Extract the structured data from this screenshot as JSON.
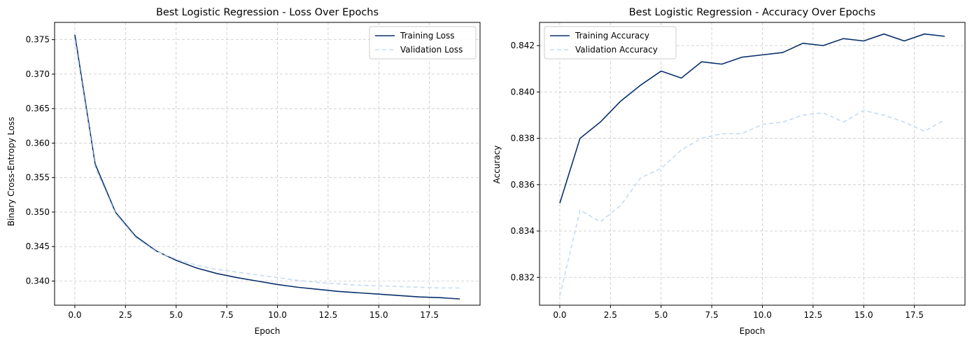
{
  "chart_data": [
    {
      "type": "line",
      "title": "Best Logistic Regression - Loss Over Epochs",
      "xlabel": "Epoch",
      "ylabel": "Binary Cross-Entropy Loss",
      "xlim": [
        -1.0,
        20.0
      ],
      "ylim": [
        0.3365,
        0.3775
      ],
      "xticks": [
        0,
        2.5,
        5,
        7.5,
        10,
        12.5,
        15,
        17.5
      ],
      "xtick_labels": [
        "0.0",
        "2.5",
        "5.0",
        "7.5",
        "10.0",
        "12.5",
        "15.0",
        "17.5"
      ],
      "yticks": [
        0.34,
        0.345,
        0.35,
        0.355,
        0.36,
        0.365,
        0.37,
        0.375
      ],
      "ytick_labels": [
        "0.340",
        "0.345",
        "0.350",
        "0.355",
        "0.360",
        "0.365",
        "0.370",
        "0.375"
      ],
      "grid": true,
      "legend_position": "top-right",
      "x": [
        0,
        1,
        2,
        3,
        4,
        5,
        6,
        7,
        8,
        9,
        10,
        11,
        12,
        13,
        14,
        15,
        16,
        17,
        18,
        19
      ],
      "series": [
        {
          "name": "Training Loss",
          "color": "#08306b",
          "dashed": false,
          "values": [
            0.3757,
            0.357,
            0.35,
            0.3465,
            0.3444,
            0.343,
            0.3419,
            0.3411,
            0.3405,
            0.34,
            0.3395,
            0.3391,
            0.3388,
            0.3385,
            0.3383,
            0.3381,
            0.3379,
            0.3377,
            0.3376,
            0.3374
          ]
        },
        {
          "name": "Validation Loss",
          "color": "#c6dbef",
          "dashed": true,
          "values": [
            0.375,
            0.3565,
            0.3498,
            0.3463,
            0.3443,
            0.3432,
            0.3423,
            0.3417,
            0.3413,
            0.3409,
            0.3405,
            0.3401,
            0.3398,
            0.3396,
            0.3394,
            0.3393,
            0.3392,
            0.3391,
            0.339,
            0.339
          ]
        }
      ]
    },
    {
      "type": "line",
      "title": "Best Logistic Regression - Accuracy Over Epochs",
      "xlabel": "Epoch",
      "ylabel": "Accuracy",
      "xlim": [
        -1.0,
        20.0
      ],
      "ylim": [
        0.8308,
        0.843
      ],
      "xticks": [
        0,
        2.5,
        5,
        7.5,
        10,
        12.5,
        15,
        17.5
      ],
      "xtick_labels": [
        "0.0",
        "2.5",
        "5.0",
        "7.5",
        "10.0",
        "12.5",
        "15.0",
        "17.5"
      ],
      "yticks": [
        0.832,
        0.834,
        0.836,
        0.838,
        0.84,
        0.842
      ],
      "ytick_labels": [
        "0.832",
        "0.834",
        "0.836",
        "0.838",
        "0.840",
        "0.842"
      ],
      "grid": true,
      "legend_position": "top-left",
      "x": [
        0,
        1,
        2,
        3,
        4,
        5,
        6,
        7,
        8,
        9,
        10,
        11,
        12,
        13,
        14,
        15,
        16,
        17,
        18,
        19
      ],
      "series": [
        {
          "name": "Training Accuracy",
          "color": "#08306b",
          "dashed": false,
          "values": [
            0.8352,
            0.838,
            0.8387,
            0.8396,
            0.8403,
            0.8409,
            0.8406,
            0.8413,
            0.8412,
            0.8415,
            0.8416,
            0.8417,
            0.8421,
            0.842,
            0.8423,
            0.8422,
            0.8425,
            0.8422,
            0.8425,
            0.8424
          ]
        },
        {
          "name": "Validation Accuracy",
          "color": "#c6dbef",
          "dashed": true,
          "values": [
            0.8312,
            0.8349,
            0.8344,
            0.8351,
            0.8363,
            0.8367,
            0.8375,
            0.838,
            0.8382,
            0.8382,
            0.8386,
            0.8387,
            0.839,
            0.8391,
            0.8387,
            0.8392,
            0.839,
            0.8387,
            0.8383,
            0.8388
          ]
        }
      ]
    }
  ]
}
